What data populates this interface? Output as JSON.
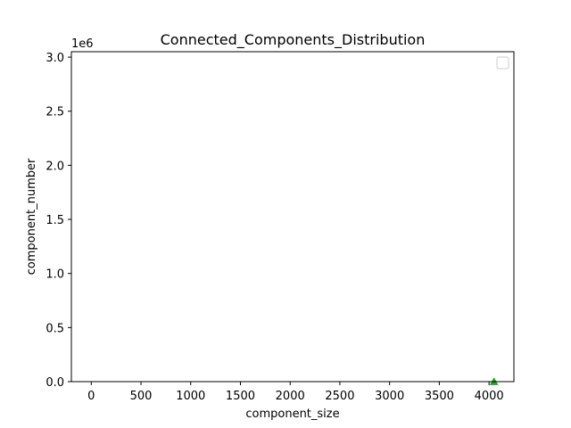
{
  "chart_data": {
    "type": "scatter",
    "title": "Connected_Components_Distribution",
    "xlabel": "component_size",
    "ylabel": "component_number",
    "y_offset_label": "1e6",
    "xlim": [
      -200,
      4250
    ],
    "ylim": [
      0,
      3.05
    ],
    "x_ticks": [
      0,
      500,
      1000,
      1500,
      2000,
      2500,
      3000,
      3500,
      4000
    ],
    "x_tick_labels": [
      "0",
      "500",
      "1000",
      "1500",
      "2000",
      "2500",
      "3000",
      "3500",
      "4000"
    ],
    "y_ticks": [
      0,
      0.5,
      1.0,
      1.5,
      2.0,
      2.5,
      3.0
    ],
    "y_tick_labels": [
      "0.0",
      "0.5",
      "1.0",
      "1.5",
      "2.0",
      "2.5",
      "3.0"
    ],
    "grid": false,
    "legend": {
      "placement": "top-right",
      "entries": []
    },
    "series": [
      {
        "color": "#2ca02c",
        "marker": "triangle",
        "points": [
          {
            "x": 4050,
            "y": 0
          }
        ]
      }
    ]
  }
}
